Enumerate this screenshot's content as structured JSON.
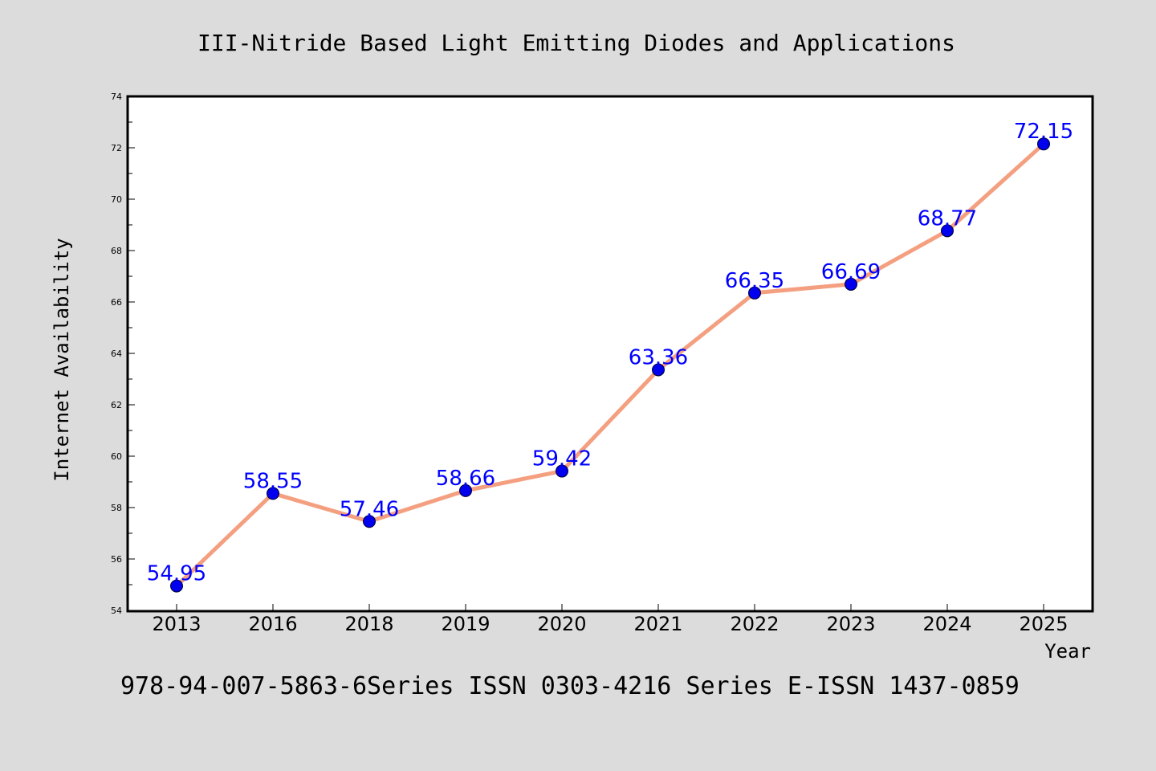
{
  "chart_data": {
    "type": "line",
    "title": "III-Nitride Based Light Emitting Diodes and Applications",
    "footer": "978-94-007-5863-6Series ISSN 0303-4216 Series E-ISSN 1437-0859",
    "xlabel": "Year",
    "ylabel": "Internet Availability",
    "categories": [
      "2013",
      "2016",
      "2018",
      "2019",
      "2020",
      "2021",
      "2022",
      "2023",
      "2024",
      "2025"
    ],
    "values": [
      54.95,
      58.55,
      57.46,
      58.66,
      59.42,
      63.36,
      66.35,
      66.69,
      68.77,
      72.15
    ],
    "data_labels": [
      "54.95",
      "58.55",
      "57.46",
      "58.66",
      "59.42",
      "63.36",
      "66.35",
      "66.69",
      "68.77",
      "72.15"
    ],
    "ylim": [
      54,
      74
    ],
    "y_ticks": [
      "54",
      "56",
      "58",
      "60",
      "62",
      "64",
      "66",
      "68",
      "70",
      "72",
      "74"
    ],
    "grid": false,
    "colors": {
      "line": "#f4a080",
      "marker": "#0000ee",
      "label": "#0000ff",
      "background": "#dcdcdc",
      "plot_background": "#ffffff"
    }
  }
}
